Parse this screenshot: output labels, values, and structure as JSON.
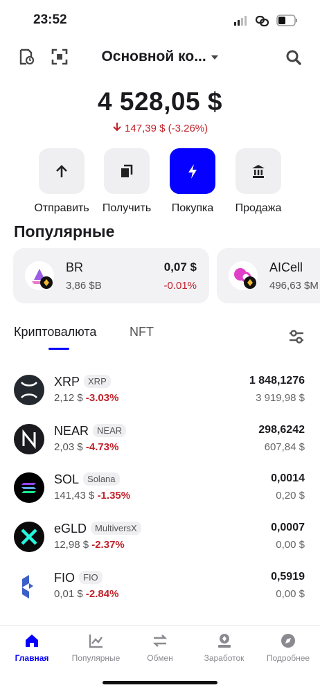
{
  "status": {
    "time": "23:52"
  },
  "header": {
    "account": "Основной ко..."
  },
  "balance": {
    "total": "4 528,05 $",
    "change": "147,39 $ (-3.26%)"
  },
  "actions": [
    "Отправить",
    "Получить",
    "Покупка",
    "Продажа"
  ],
  "popular": {
    "title": "Популярные",
    "cards": [
      {
        "symbol": "BR",
        "volume": "3,86 $B",
        "price": "0,07 $",
        "change": "-0.01%"
      },
      {
        "symbol": "AICell",
        "volume": "496,63 $M"
      }
    ]
  },
  "tabs": [
    "Криптовалюта",
    "NFT"
  ],
  "assets": [
    {
      "symbol": "XRP",
      "name": "XRP",
      "price": "2,12 $",
      "change": "-3.03%",
      "amount": "1 848,1276",
      "value": "3 919,98 $"
    },
    {
      "symbol": "NEAR",
      "name": "NEAR",
      "price": "2,03 $",
      "change": "-4.73%",
      "amount": "298,6242",
      "value": "607,84 $"
    },
    {
      "symbol": "SOL",
      "name": "Solana",
      "price": "141,43 $",
      "change": "-1.35%",
      "amount": "0,0014",
      "value": "0,20 $"
    },
    {
      "symbol": "eGLD",
      "name": "MultiversX",
      "price": "12,98 $",
      "change": "-2.37%",
      "amount": "0,0007",
      "value": "0,00 $"
    },
    {
      "symbol": "FIO",
      "name": "FIO",
      "price": "0,01 $",
      "change": "-2.84%",
      "amount": "0,5919",
      "value": "0,00 $"
    }
  ],
  "nav": [
    "Главная",
    "Популярные",
    "Обмен",
    "Заработок",
    "Подробнее"
  ]
}
